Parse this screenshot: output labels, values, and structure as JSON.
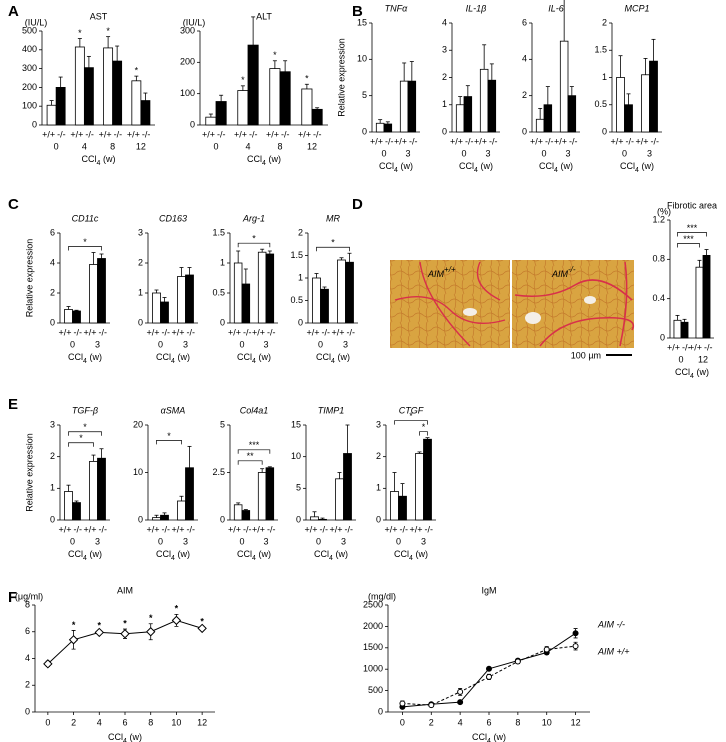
{
  "chart_data": [
    {
      "type": "bar",
      "panel": "A",
      "title": "AST",
      "unit": "(IU/L)",
      "categories": [
        "0",
        "4",
        "8",
        "12"
      ],
      "series": [
        {
          "name": "+/+",
          "color": "#ffffff",
          "values": [
            105,
            415,
            410,
            235
          ],
          "errors": [
            25,
            45,
            60,
            25
          ]
        },
        {
          "name": "-/-",
          "color": "#000000",
          "values": [
            200,
            305,
            340,
            130
          ],
          "errors": [
            55,
            60,
            80,
            40
          ]
        }
      ],
      "ylim": [
        0,
        500
      ],
      "yticks": [
        0,
        100,
        200,
        300,
        400,
        500
      ],
      "xlabel": [
        "CCl",
        "4",
        " (w)"
      ],
      "annotations": [
        {
          "text": "*",
          "category": 1,
          "series": 0
        },
        {
          "text": "*",
          "category": 2,
          "series": 0
        },
        {
          "text": "*",
          "category": 3,
          "series": 0
        }
      ]
    },
    {
      "type": "bar",
      "title": "ALT",
      "unit": "(IU/L)",
      "categories": [
        "0",
        "4",
        "8",
        "12"
      ],
      "series": [
        {
          "name": "+/+",
          "color": "#ffffff",
          "values": [
            25,
            110,
            180,
            115
          ],
          "errors": [
            10,
            15,
            25,
            15
          ]
        },
        {
          "name": "-/-",
          "color": "#000000",
          "values": [
            75,
            255,
            170,
            50
          ],
          "errors": [
            20,
            90,
            35,
            5
          ]
        }
      ],
      "ylim": [
        0,
        300
      ],
      "yticks": [
        0,
        100,
        200,
        300
      ],
      "xlabel": [
        "CCl",
        "4",
        " (w)"
      ],
      "annotations": [
        {
          "text": "*",
          "category": 1,
          "series": 0
        },
        {
          "text": "*",
          "category": 2,
          "series": 0
        },
        {
          "text": "*",
          "category": 3,
          "series": 0
        }
      ]
    },
    {
      "type": "bar",
      "panel": "B",
      "title": "TNFα",
      "italic": true,
      "ylabel": "Relative expression",
      "categories": [
        "0",
        "3"
      ],
      "series": [
        {
          "name": "+/+",
          "color": "#ffffff",
          "values": [
            1.2,
            7
          ],
          "errors": [
            0.5,
            2.5
          ]
        },
        {
          "name": "-/-",
          "color": "#000000",
          "values": [
            1.1,
            7
          ],
          "errors": [
            0.3,
            2.7
          ]
        }
      ],
      "ylim": [
        0,
        15
      ],
      "yticks": [
        0,
        5,
        10,
        15
      ],
      "xlabel": [
        "CCl",
        "4",
        " (w)"
      ]
    },
    {
      "type": "bar",
      "title": "IL-1β",
      "italic": true,
      "categories": [
        "0",
        "3"
      ],
      "series": [
        {
          "name": "+/+",
          "color": "#ffffff",
          "values": [
            1,
            2.3
          ],
          "errors": [
            0.3,
            0.9
          ]
        },
        {
          "name": "-/-",
          "color": "#000000",
          "values": [
            1.3,
            1.9
          ],
          "errors": [
            0.4,
            0.6
          ]
        }
      ],
      "ylim": [
        0,
        4
      ],
      "yticks": [
        0,
        1,
        2,
        3,
        4
      ],
      "xlabel": [
        "CCl",
        "4",
        " (w)"
      ]
    },
    {
      "type": "bar",
      "title": "IL-6",
      "italic": true,
      "categories": [
        "0",
        "3"
      ],
      "series": [
        {
          "name": "+/+",
          "color": "#ffffff",
          "values": [
            0.7,
            5
          ],
          "errors": [
            0.6,
            2.5
          ]
        },
        {
          "name": "-/-",
          "color": "#000000",
          "values": [
            1.5,
            2
          ],
          "errors": [
            1,
            0.5
          ]
        }
      ],
      "ylim": [
        0,
        6
      ],
      "yticks": [
        0,
        2,
        4,
        6
      ],
      "xlabel": [
        "CCl",
        "4",
        " (w)"
      ]
    },
    {
      "type": "bar",
      "title": "MCP1",
      "italic": true,
      "categories": [
        "0",
        "3"
      ],
      "series": [
        {
          "name": "+/+",
          "color": "#ffffff",
          "values": [
            1,
            1.05
          ],
          "errors": [
            0.4,
            0.3
          ]
        },
        {
          "name": "-/-",
          "color": "#000000",
          "values": [
            0.5,
            1.3
          ],
          "errors": [
            0.2,
            0.4
          ]
        }
      ],
      "ylim": [
        0,
        2
      ],
      "yticks": [
        0,
        0.5,
        1,
        1.5,
        2
      ],
      "xlabel": [
        "CCl",
        "4",
        " (w)"
      ]
    },
    {
      "type": "bar",
      "panel": "C",
      "title": "CD11c",
      "italic": true,
      "ylabel": "Relative expression",
      "categories": [
        "0",
        "3"
      ],
      "series": [
        {
          "name": "+/+",
          "color": "#ffffff",
          "values": [
            0.9,
            3.9
          ],
          "errors": [
            0.2,
            0.8
          ]
        },
        {
          "name": "-/-",
          "color": "#000000",
          "values": [
            0.8,
            4.3
          ],
          "errors": [
            0.05,
            0.3
          ]
        }
      ],
      "ylim": [
        0,
        6
      ],
      "yticks": [
        0,
        2,
        4,
        6
      ],
      "xlabel": [
        "CCl",
        "4",
        " (w)"
      ],
      "brackets": [
        {
          "text": "*",
          "from": [
            0,
            0
          ],
          "to": [
            1,
            1
          ]
        }
      ]
    },
    {
      "type": "bar",
      "title": "CD163",
      "italic": true,
      "categories": [
        "0",
        "3"
      ],
      "series": [
        {
          "name": "+/+",
          "color": "#ffffff",
          "values": [
            1,
            1.55
          ],
          "errors": [
            0.1,
            0.3
          ]
        },
        {
          "name": "-/-",
          "color": "#000000",
          "values": [
            0.7,
            1.6
          ],
          "errors": [
            0.15,
            0.25
          ]
        }
      ],
      "ylim": [
        0,
        3
      ],
      "yticks": [
        0,
        1,
        2,
        3
      ],
      "xlabel": [
        "CCl",
        "4",
        " (w)"
      ]
    },
    {
      "type": "bar",
      "title": "Arg-1",
      "italic": true,
      "categories": [
        "0",
        "3"
      ],
      "series": [
        {
          "name": "+/+",
          "color": "#ffffff",
          "values": [
            1,
            1.18
          ],
          "errors": [
            0.2,
            0.05
          ]
        },
        {
          "name": "-/-",
          "color": "#000000",
          "values": [
            0.65,
            1.15
          ],
          "errors": [
            0.25,
            0.05
          ]
        }
      ],
      "ylim": [
        0,
        1.5
      ],
      "yticks": [
        0,
        0.5,
        1,
        1.5
      ],
      "xlabel": [
        "CCl",
        "4",
        " (w)"
      ],
      "brackets": [
        {
          "text": "*",
          "from": [
            0,
            0
          ],
          "to": [
            1,
            1
          ]
        }
      ]
    },
    {
      "type": "bar",
      "title": "MR",
      "italic": true,
      "categories": [
        "0",
        "3"
      ],
      "series": [
        {
          "name": "+/+",
          "color": "#ffffff",
          "values": [
            1,
            1.4
          ],
          "errors": [
            0.1,
            0.05
          ]
        },
        {
          "name": "-/-",
          "color": "#000000",
          "values": [
            0.75,
            1.35
          ],
          "errors": [
            0.05,
            0.2
          ]
        }
      ],
      "ylim": [
        0,
        2
      ],
      "yticks": [
        0,
        0.5,
        1,
        1.5,
        2
      ],
      "xlabel": [
        "CCl",
        "4",
        " (w)"
      ],
      "brackets": [
        {
          "text": "*",
          "from": [
            0,
            0
          ],
          "to": [
            1,
            1
          ]
        }
      ]
    },
    {
      "type": "bar",
      "title": "Fibrotic area",
      "unit": "(%)",
      "categories": [
        "0",
        "12"
      ],
      "series": [
        {
          "name": "+/+",
          "color": "#ffffff",
          "values": [
            0.18,
            0.72
          ],
          "errors": [
            0.05,
            0.07
          ]
        },
        {
          "name": "-/-",
          "color": "#000000",
          "values": [
            0.16,
            0.84
          ],
          "errors": [
            0.03,
            0.06
          ]
        }
      ],
      "ylim": [
        0,
        1.2
      ],
      "yticks": [
        0,
        0.4,
        0.8,
        1.2
      ],
      "xlabel": [
        "CCl",
        "4",
        " (w)"
      ],
      "brackets": [
        {
          "text": "***",
          "from": [
            0,
            0
          ],
          "to": [
            1,
            0
          ]
        },
        {
          "text": "***",
          "from": [
            0,
            0
          ],
          "to": [
            1,
            1
          ]
        }
      ]
    },
    {
      "type": "bar",
      "panel": "E",
      "title": "TGF-β",
      "italic": true,
      "ylabel": "Relative expression",
      "categories": [
        "0",
        "3"
      ],
      "series": [
        {
          "name": "+/+",
          "color": "#ffffff",
          "values": [
            0.9,
            1.85
          ],
          "errors": [
            0.2,
            0.2
          ]
        },
        {
          "name": "-/-",
          "color": "#000000",
          "values": [
            0.55,
            1.95
          ],
          "errors": [
            0.05,
            0.3
          ]
        }
      ],
      "ylim": [
        0,
        3
      ],
      "yticks": [
        0,
        1,
        2,
        3
      ],
      "xlabel": [
        "CCl",
        "4",
        " (w)"
      ],
      "brackets": [
        {
          "text": "*",
          "from": [
            0,
            0
          ],
          "to": [
            1,
            0
          ]
        },
        {
          "text": "*",
          "from": [
            0,
            0
          ],
          "to": [
            1,
            1
          ]
        }
      ]
    },
    {
      "type": "bar",
      "title": "αSMA",
      "italic": true,
      "categories": [
        "0",
        "3"
      ],
      "series": [
        {
          "name": "+/+",
          "color": "#ffffff",
          "values": [
            0.5,
            4
          ],
          "errors": [
            0.5,
            1
          ]
        },
        {
          "name": "-/-",
          "color": "#000000",
          "values": [
            1,
            11
          ],
          "errors": [
            0.5,
            4.5
          ]
        }
      ],
      "ylim": [
        0,
        20
      ],
      "yticks": [
        0,
        10,
        20
      ],
      "xlabel": [
        "CCl",
        "4",
        " (w)"
      ],
      "brackets": [
        {
          "text": "*",
          "from": [
            0,
            0
          ],
          "to": [
            1,
            0
          ]
        }
      ]
    },
    {
      "type": "bar",
      "title": "Col4a1",
      "italic": true,
      "categories": [
        "0",
        "3"
      ],
      "series": [
        {
          "name": "+/+",
          "color": "#ffffff",
          "values": [
            0.8,
            2.5
          ],
          "errors": [
            0.1,
            0.2
          ]
        },
        {
          "name": "-/-",
          "color": "#000000",
          "values": [
            0.5,
            2.75
          ],
          "errors": [
            0.05,
            0.05
          ]
        }
      ],
      "ylim": [
        0,
        5
      ],
      "yticks": [
        0,
        2.5,
        5
      ],
      "xlabel": [
        "CCl",
        "4",
        " (w)"
      ],
      "brackets": [
        {
          "text": "**",
          "from": [
            0,
            0
          ],
          "to": [
            1,
            0
          ]
        },
        {
          "text": "***",
          "from": [
            0,
            0
          ],
          "to": [
            1,
            1
          ]
        }
      ]
    },
    {
      "type": "bar",
      "title": "TIMP1",
      "italic": true,
      "categories": [
        "0",
        "3"
      ],
      "series": [
        {
          "name": "+/+",
          "color": "#ffffff",
          "values": [
            0.5,
            6.5
          ],
          "errors": [
            0.8,
            1
          ]
        },
        {
          "name": "-/-",
          "color": "#000000",
          "values": [
            0.1,
            10.5
          ],
          "errors": [
            0.2,
            4.5
          ]
        }
      ],
      "ylim": [
        0,
        15
      ],
      "yticks": [
        0,
        5,
        10,
        15
      ],
      "xlabel": [
        "CCl",
        "4",
        " (w)"
      ]
    },
    {
      "type": "bar",
      "title": "CTGF",
      "italic": true,
      "categories": [
        "0",
        "3"
      ],
      "series": [
        {
          "name": "+/+",
          "color": "#ffffff",
          "values": [
            0.9,
            2.1
          ],
          "errors": [
            0.6,
            0.05
          ]
        },
        {
          "name": "-/-",
          "color": "#000000",
          "values": [
            0.75,
            2.55
          ],
          "errors": [
            0.4,
            0.05
          ]
        }
      ],
      "ylim": [
        0,
        3
      ],
      "yticks": [
        0,
        1,
        2,
        3
      ],
      "xlabel": [
        "CCl",
        "4",
        " (w)"
      ],
      "brackets": [
        {
          "text": "*",
          "from": [
            1,
            0
          ],
          "to": [
            1,
            1
          ]
        },
        {
          "text": "*",
          "from": [
            0,
            0
          ],
          "to": [
            1,
            1
          ]
        }
      ]
    },
    {
      "type": "line",
      "panel": "F",
      "title": "AIM",
      "unit": "(μg/ml)",
      "x": [
        0,
        2,
        4,
        6,
        8,
        10,
        12
      ],
      "xlim": [
        -1,
        13
      ],
      "xticks": [
        0,
        2,
        4,
        6,
        8,
        10,
        12
      ],
      "ylim": [
        0,
        8
      ],
      "yticks": [
        0,
        2,
        4,
        6,
        8
      ],
      "xlabel": [
        "CCl",
        "4",
        " (w)"
      ],
      "series": [
        {
          "color": "#000000",
          "fill": "#ffffff",
          "marker": "diamond",
          "values": [
            3.6,
            5.4,
            5.95,
            5.85,
            6.0,
            6.85,
            6.25
          ],
          "errors": [
            0.2,
            0.7,
            0.1,
            0.35,
            0.6,
            0.45,
            0.1
          ]
        }
      ],
      "annotations": [
        {
          "text": "*",
          "series": 0,
          "index": 1
        },
        {
          "text": "*",
          "series": 0,
          "index": 2
        },
        {
          "text": "*",
          "series": 0,
          "index": 3
        },
        {
          "text": "*",
          "series": 0,
          "index": 4
        },
        {
          "text": "*",
          "series": 0,
          "index": 5
        },
        {
          "text": "*",
          "series": 0,
          "index": 6
        }
      ]
    },
    {
      "type": "line",
      "title": "IgM",
      "unit": "(mg/dl)",
      "x": [
        0,
        2,
        4,
        6,
        8,
        10,
        12
      ],
      "xlim": [
        -1,
        13
      ],
      "xticks": [
        0,
        2,
        4,
        6,
        8,
        10,
        12
      ],
      "ylim": [
        0,
        2500
      ],
      "yticks": [
        0,
        500,
        1000,
        1500,
        2000,
        2500
      ],
      "xlabel": [
        "CCl",
        "4",
        " (w)"
      ],
      "legend": "right",
      "series": [
        {
          "name": "AIM -/-",
          "color": "#000000",
          "fill": "#000000",
          "marker": "circle",
          "dash": false,
          "values": [
            120,
            180,
            230,
            1010,
            1200,
            1390,
            1840
          ],
          "errors": [
            30,
            20,
            30,
            40,
            40,
            50,
            110
          ]
        },
        {
          "name": "AIM +/+",
          "color": "#000000",
          "fill": "#ffffff",
          "marker": "circle",
          "dash": true,
          "values": [
            200,
            160,
            470,
            820,
            1180,
            1460,
            1540
          ],
          "errors": [
            60,
            30,
            80,
            60,
            50,
            70,
            90
          ]
        }
      ]
    }
  ],
  "micrographs": {
    "panel": "D",
    "labels": [
      {
        "name": "AIM",
        "sup": "+/+"
      },
      {
        "name": "AIM",
        "sup": "-/-"
      }
    ],
    "scale_bar": "100 µm"
  }
}
